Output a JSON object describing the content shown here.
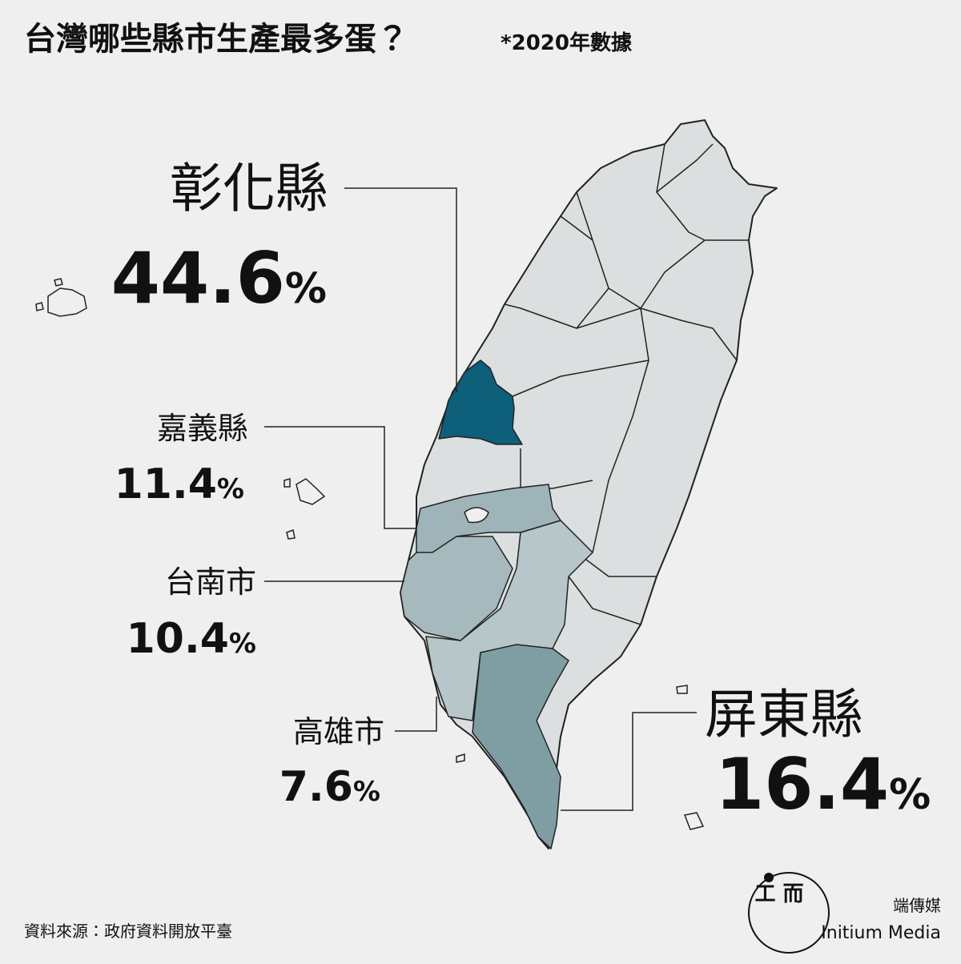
{
  "header": {
    "title": "台灣哪些縣市生產最多蛋？",
    "note": "*2020年數據"
  },
  "regions": [
    {
      "name": "彰化縣",
      "value": 44.6,
      "unit": "%",
      "color": "#0e5f7a"
    },
    {
      "name": "嘉義縣",
      "value": 11.4,
      "unit": "%",
      "color": "#9fb4b9"
    },
    {
      "name": "台南市",
      "value": 10.4,
      "unit": "%",
      "color": "#a6babe"
    },
    {
      "name": "高雄市",
      "value": 7.6,
      "unit": "%",
      "color": "#b6c6c9"
    },
    {
      "name": "屏東縣",
      "value": 16.4,
      "unit": "%",
      "color": "#7f9ea4"
    }
  ],
  "footer": {
    "source": "資料來源：政府資料開放平臺",
    "brand_zh": "端傳媒",
    "brand_en": "Initium Media"
  }
}
